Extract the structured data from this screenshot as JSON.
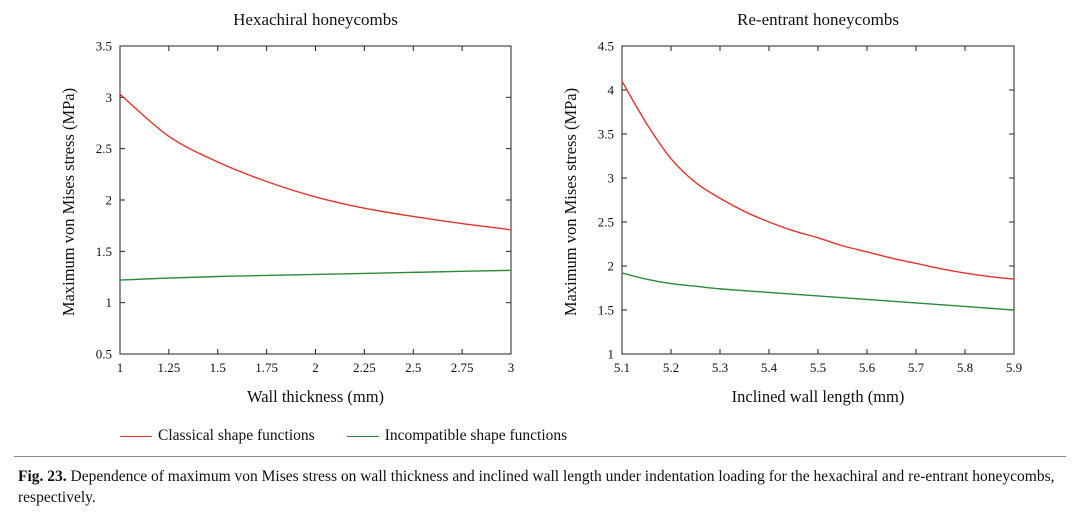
{
  "chart_data": [
    {
      "type": "line",
      "title": "Hexachiral honeycombs",
      "xlabel": "Wall thickness (mm)",
      "ylabel": "Maximum von Mises stress (MPa)",
      "xlim": [
        1,
        3
      ],
      "ylim": [
        0.5,
        3.5
      ],
      "xticks": [
        "1",
        "1.25",
        "1.5",
        "1.75",
        "2",
        "2.25",
        "2.5",
        "2.75",
        "3"
      ],
      "yticks": [
        "0.5",
        "1",
        "1.5",
        "2",
        "2.5",
        "3",
        "3.5"
      ],
      "x": [
        1,
        1.25,
        1.5,
        1.75,
        2,
        2.25,
        2.5,
        2.75,
        3
      ],
      "grid": false,
      "series": [
        {
          "name": "Classical shape functions",
          "color": "#e3342b",
          "values": [
            3.03,
            2.62,
            2.37,
            2.18,
            2.03,
            1.92,
            1.84,
            1.77,
            1.71
          ]
        },
        {
          "name": "Incompatible shape functions",
          "color": "#2d8a3a",
          "values": [
            1.22,
            1.24,
            1.255,
            1.265,
            1.275,
            1.285,
            1.295,
            1.305,
            1.315
          ]
        }
      ]
    },
    {
      "type": "line",
      "title": "Re-entrant honeycombs",
      "xlabel": "Inclined wall length (mm)",
      "ylabel": "Maximum von Mises stress (MPa)",
      "xlim": [
        5.1,
        5.9
      ],
      "ylim": [
        1,
        4.5
      ],
      "xticks": [
        "5.1",
        "5.2",
        "5.3",
        "5.4",
        "5.5",
        "5.6",
        "5.7",
        "5.8",
        "5.9"
      ],
      "yticks": [
        "1",
        "1.5",
        "2",
        "2.5",
        "3",
        "3.5",
        "4",
        "4.5"
      ],
      "x": [
        5.1,
        5.15,
        5.2,
        5.25,
        5.3,
        5.35,
        5.4,
        5.45,
        5.5,
        5.55,
        5.6,
        5.65,
        5.7,
        5.75,
        5.8,
        5.85,
        5.9
      ],
      "grid": false,
      "series": [
        {
          "name": "Classical shape functions",
          "color": "#e3342b",
          "values": [
            4.1,
            3.62,
            3.22,
            2.95,
            2.77,
            2.62,
            2.5,
            2.4,
            2.32,
            2.23,
            2.16,
            2.09,
            2.03,
            1.97,
            1.92,
            1.88,
            1.85
          ]
        },
        {
          "name": "Incompatible shape functions",
          "color": "#2d8a3a",
          "values": [
            1.92,
            1.85,
            1.8,
            1.77,
            1.74,
            1.72,
            1.7,
            1.68,
            1.66,
            1.64,
            1.62,
            1.6,
            1.58,
            1.56,
            1.54,
            1.52,
            1.5
          ]
        }
      ]
    }
  ],
  "legend": {
    "classical": {
      "label": "Classical shape functions",
      "color": "#e3342b"
    },
    "incompatible": {
      "label": "Incompatible shape functions",
      "color": "#2d8a3a"
    }
  },
  "caption": {
    "label": "Fig. 23.",
    "text": "Dependence of maximum von Mises stress on wall thickness and inclined wall length under indentation loading for the hexachiral and re-entrant honeycombs, respectively."
  }
}
